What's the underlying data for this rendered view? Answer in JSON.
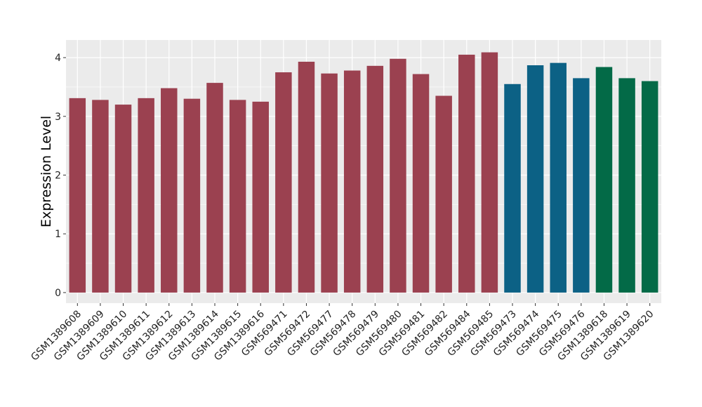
{
  "chart_data": {
    "type": "bar",
    "title": "",
    "xlabel": "",
    "ylabel": "Expression Level",
    "ylim": [
      -0.18,
      4.3
    ],
    "yticks": [
      0,
      1,
      2,
      3,
      4
    ],
    "grid": true,
    "legend": "none",
    "panel_background": "#ebebeb",
    "grid_color": "#ffffff",
    "categories": [
      "GSM1389608",
      "GSM1389609",
      "GSM1389610",
      "GSM1389611",
      "GSM1389612",
      "GSM1389613",
      "GSM1389614",
      "GSM1389615",
      "GSM1389616",
      "GSM569471",
      "GSM569472",
      "GSM569477",
      "GSM569478",
      "GSM569479",
      "GSM569480",
      "GSM569481",
      "GSM569482",
      "GSM569484",
      "GSM569485",
      "GSM569473",
      "GSM569474",
      "GSM569475",
      "GSM569476",
      "GSM1389618",
      "GSM1389619",
      "GSM1389620"
    ],
    "values": [
      3.31,
      3.28,
      3.2,
      3.31,
      3.48,
      3.3,
      3.57,
      3.28,
      3.25,
      3.75,
      3.93,
      3.73,
      3.78,
      3.86,
      3.98,
      3.72,
      3.35,
      4.05,
      4.09,
      3.55,
      3.87,
      3.91,
      3.65,
      3.84,
      3.65,
      3.6
    ],
    "group_colors": [
      "#9b4150",
      "#9b4150",
      "#9b4150",
      "#9b4150",
      "#9b4150",
      "#9b4150",
      "#9b4150",
      "#9b4150",
      "#9b4150",
      "#9b4150",
      "#9b4150",
      "#9b4150",
      "#9b4150",
      "#9b4150",
      "#9b4150",
      "#9b4150",
      "#9b4150",
      "#9b4150",
      "#9b4150",
      "#0c6185",
      "#0c6185",
      "#0c6185",
      "#0c6185",
      "#036a47",
      "#036a47",
      "#036a47"
    ]
  }
}
